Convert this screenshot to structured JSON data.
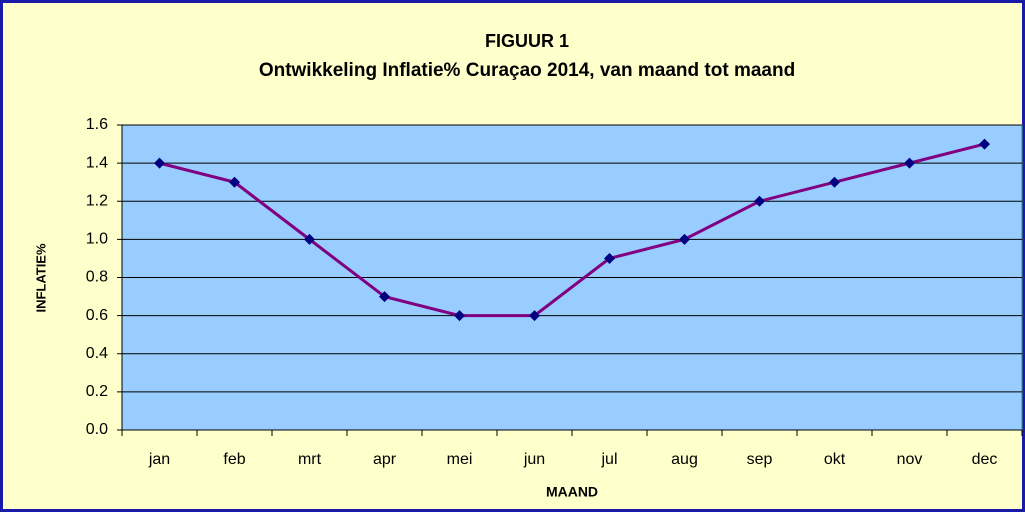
{
  "chart_data": {
    "type": "line",
    "title": "FIGUUR 1",
    "subtitle": "Ontwikkeling Inflatie% Curaçao 2014, van maand tot maand",
    "x_label": "MAAND",
    "y_label": "INFLATIE%",
    "categories": [
      "jan",
      "feb",
      "mrt",
      "apr",
      "mei",
      "jun",
      "jul",
      "aug",
      "sep",
      "okt",
      "nov",
      "dec"
    ],
    "series": [
      {
        "name": "Inflatie%",
        "color": "#800080",
        "marker_color": "#000080",
        "values": [
          1.4,
          1.3,
          1.0,
          0.7,
          0.6,
          0.6,
          0.9,
          1.0,
          1.2,
          1.3,
          1.4,
          1.5
        ]
      }
    ],
    "ylim": [
      0,
      1.6
    ],
    "yticks": [
      {
        "value": 0,
        "label": "0.0"
      },
      0.2,
      0.4,
      0.6,
      0.8,
      {
        "value": 1,
        "label": "1.0"
      },
      1.2,
      1.4,
      1.6
    ],
    "grid": true,
    "legend": false
  }
}
